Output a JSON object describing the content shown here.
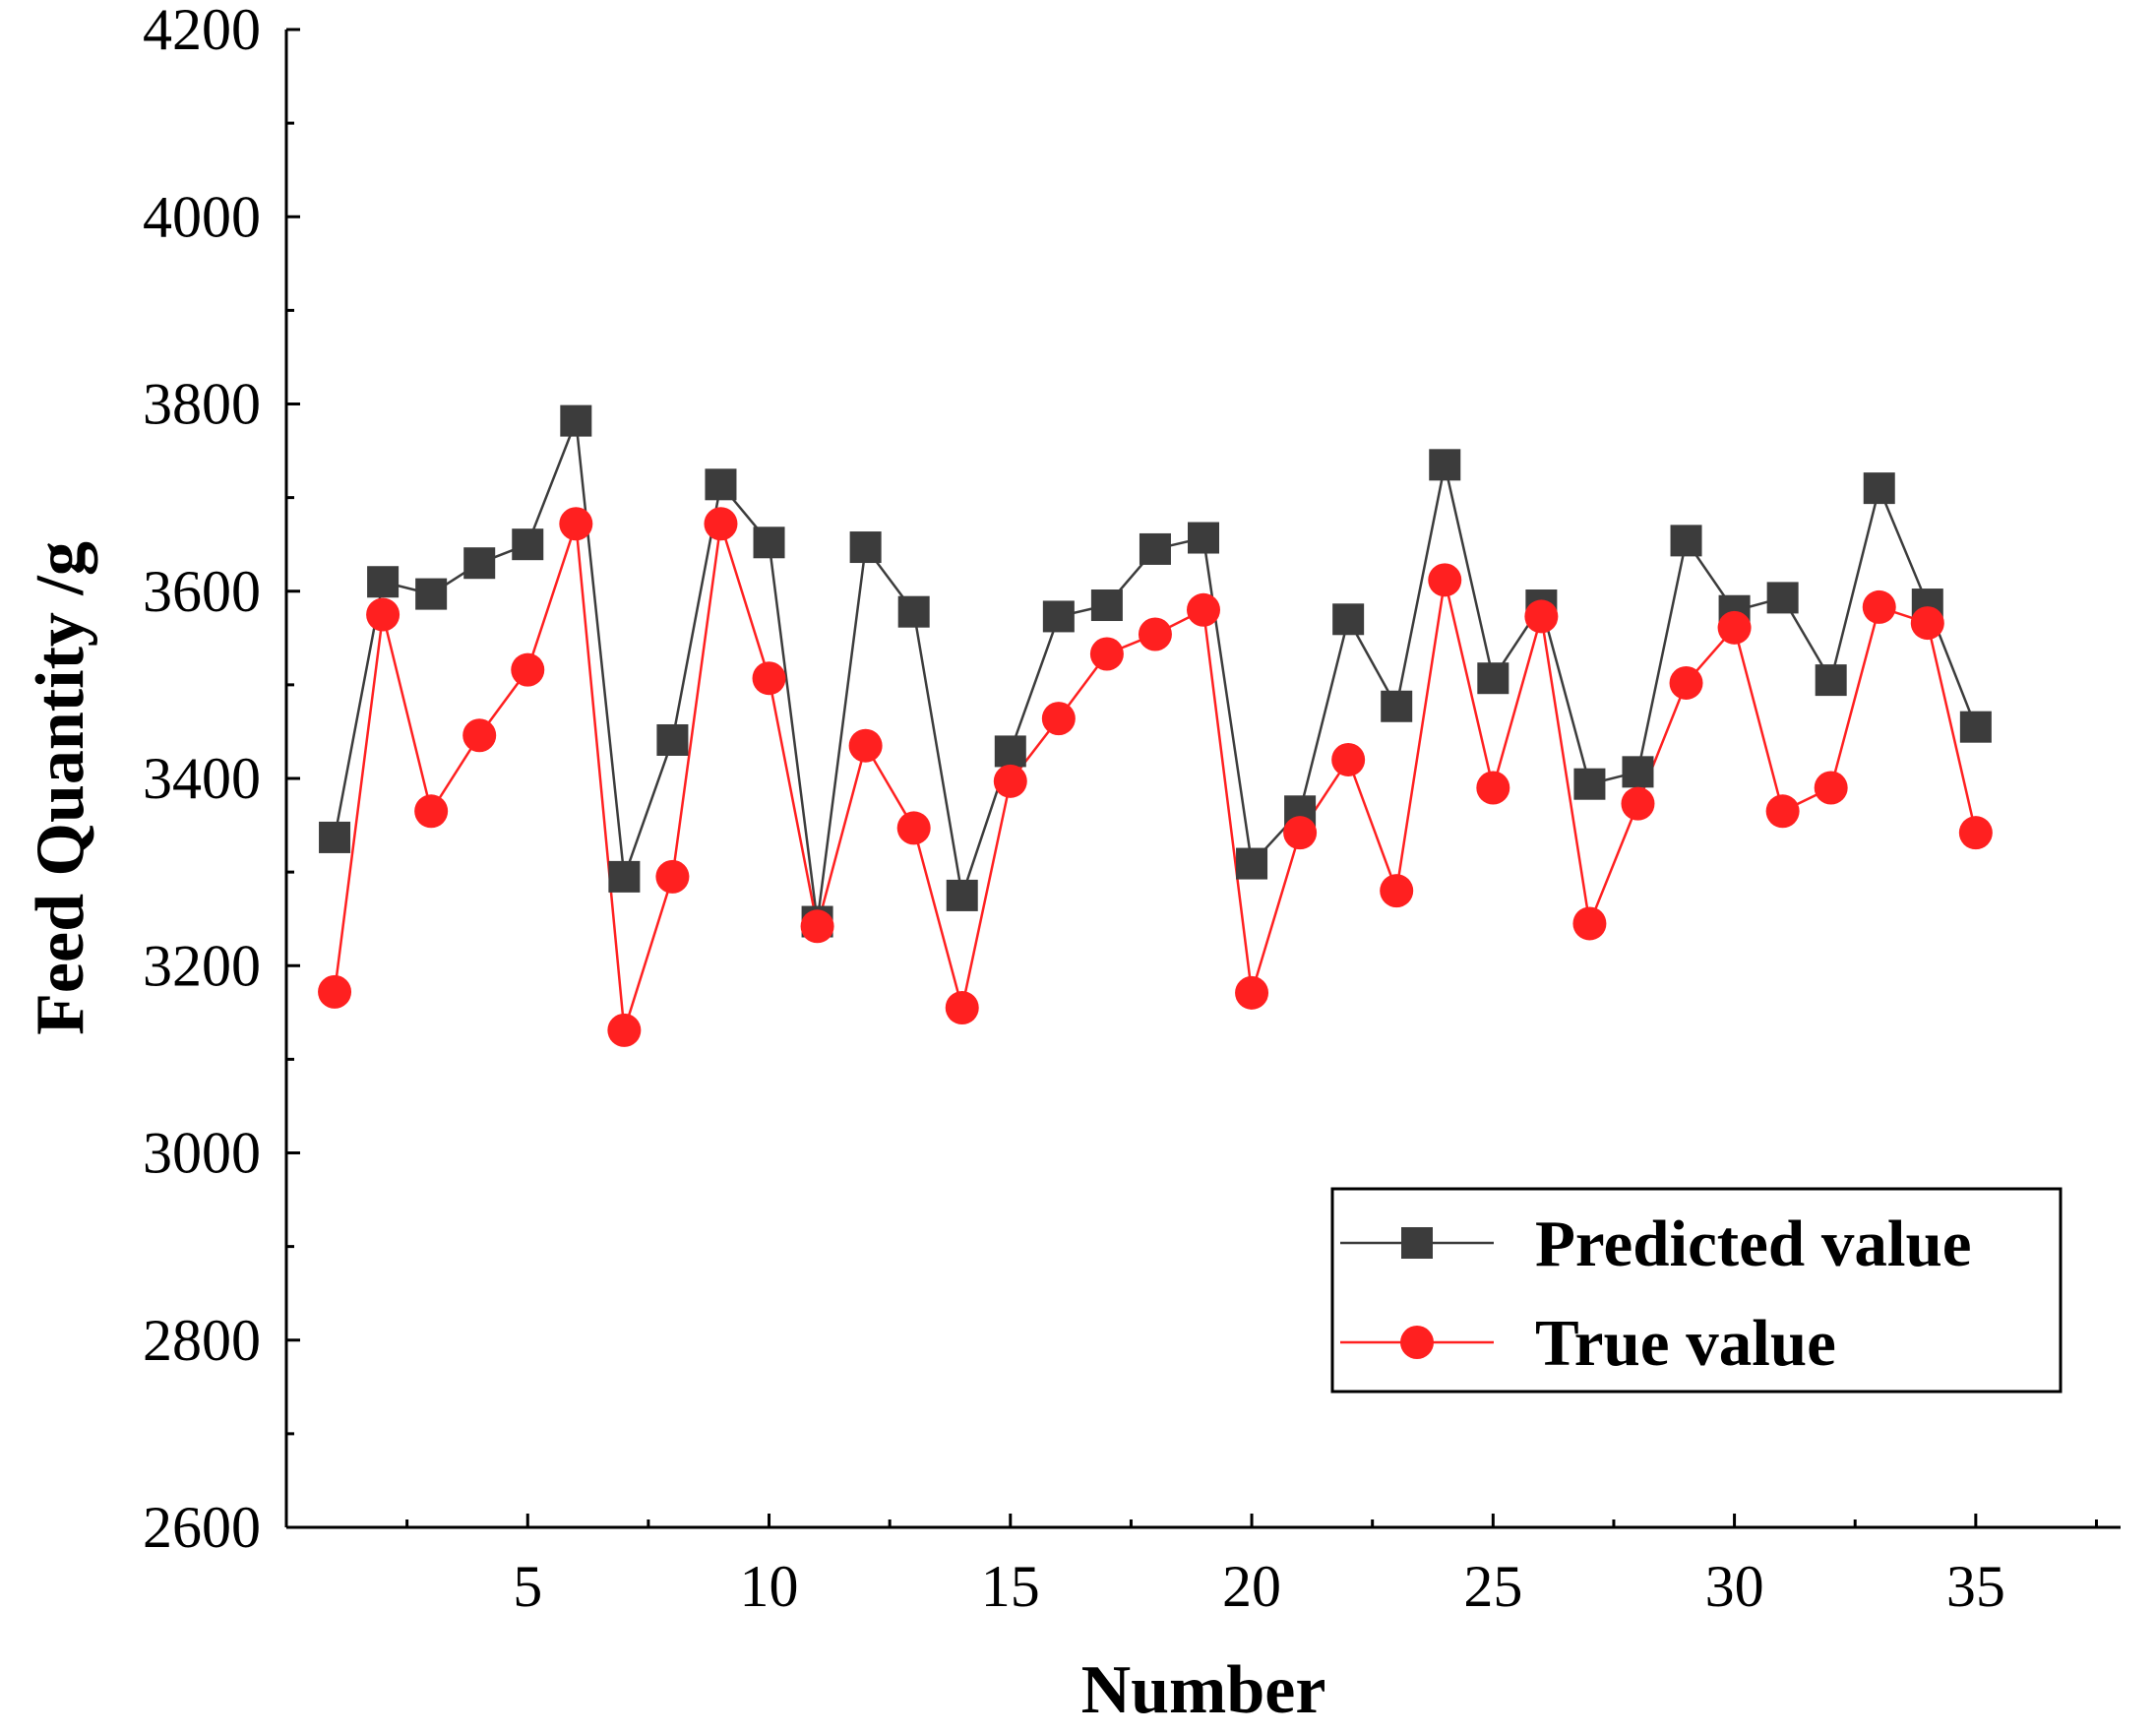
{
  "chart_data": {
    "type": "line",
    "title": "",
    "xlabel": "Number",
    "ylabel": "Feed Quantity /g",
    "xlim": [
      0,
      38
    ],
    "ylim": [
      2600,
      4200
    ],
    "xticks": [
      5,
      10,
      15,
      20,
      25,
      30,
      35
    ],
    "yticks": [
      2600,
      2800,
      3000,
      3200,
      3400,
      3600,
      3800,
      4000,
      4200
    ],
    "xtick_labels": [
      "5",
      "10",
      "15",
      "20",
      "25",
      "30",
      "35"
    ],
    "ytick_labels": [
      "2600",
      "2800",
      "3000",
      "3200",
      "3400",
      "3600",
      "3800",
      "4000",
      "4200"
    ],
    "grid": false,
    "legend_position": "bottom-right",
    "x": [
      1,
      2,
      3,
      4,
      5,
      6,
      7,
      8,
      9,
      10,
      11,
      12,
      13,
      14,
      15,
      16,
      17,
      18,
      19,
      20,
      21,
      22,
      23,
      24,
      25,
      26,
      27,
      28,
      29,
      30,
      31,
      32,
      33,
      34,
      35
    ],
    "series": [
      {
        "name": "Predicted value",
        "color": "#3c3c3c",
        "marker": "square",
        "values": [
          3337,
          3610,
          3597,
          3630,
          3650,
          3782,
          3295,
          3441,
          3714,
          3652,
          3247,
          3647,
          3578,
          3275,
          3429,
          3573,
          3585,
          3645,
          3657,
          3309,
          3365,
          3570,
          3477,
          3735,
          3507,
          3585,
          3394,
          3407,
          3654,
          3579,
          3593,
          3505,
          3710,
          3586,
          3455
        ]
      },
      {
        "name": "True value",
        "color": "#ff2020",
        "marker": "circle",
        "values": [
          3172,
          3575,
          3365,
          3446,
          3516,
          3672,
          3131,
          3295,
          3672,
          3507,
          3242,
          3435,
          3347,
          3155,
          3397,
          3464,
          3533,
          3554,
          3580,
          3171,
          3342,
          3420,
          3280,
          3612,
          3390,
          3573,
          3245,
          3373,
          3502,
          3561,
          3365,
          3390,
          3583,
          3566,
          3342
        ]
      }
    ]
  }
}
